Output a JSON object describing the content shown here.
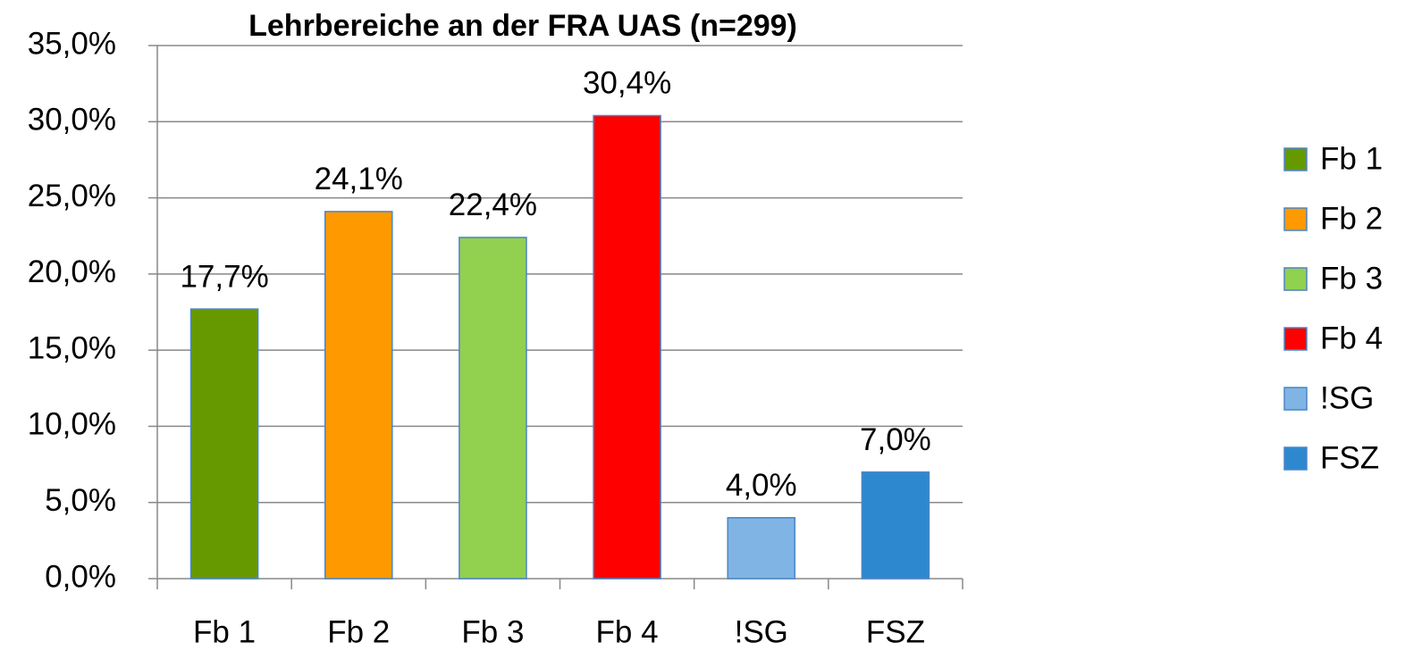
{
  "chart_data": {
    "type": "bar",
    "title": "Lehrbereiche an der FRA UAS (n=299)",
    "categories": [
      "Fb 1",
      "Fb 2",
      "Fb 3",
      "Fb 4",
      "!SG",
      "FSZ"
    ],
    "values": [
      17.7,
      24.1,
      22.4,
      30.4,
      4.0,
      7.0
    ],
    "value_labels": [
      "17,7%",
      "24,1%",
      "22,4%",
      "30,4%",
      "4,0%",
      "7,0%"
    ],
    "colors": [
      "#669900",
      "#ff9900",
      "#92d050",
      "#ff0000",
      "#80b4e4",
      "#2e88cf"
    ],
    "ylim": [
      0,
      35
    ],
    "yticks": [
      {
        "value": 0,
        "label": "0,0%"
      },
      {
        "value": 5,
        "label": "5,0%"
      },
      {
        "value": 10,
        "label": "10,0%"
      },
      {
        "value": 15,
        "label": "15,0%"
      },
      {
        "value": 20,
        "label": "20,0%"
      },
      {
        "value": 25,
        "label": "25,0%"
      },
      {
        "value": 30,
        "label": "30,0%"
      },
      {
        "value": 35,
        "label": "35,0%"
      }
    ],
    "grid": true,
    "legend": "right"
  }
}
